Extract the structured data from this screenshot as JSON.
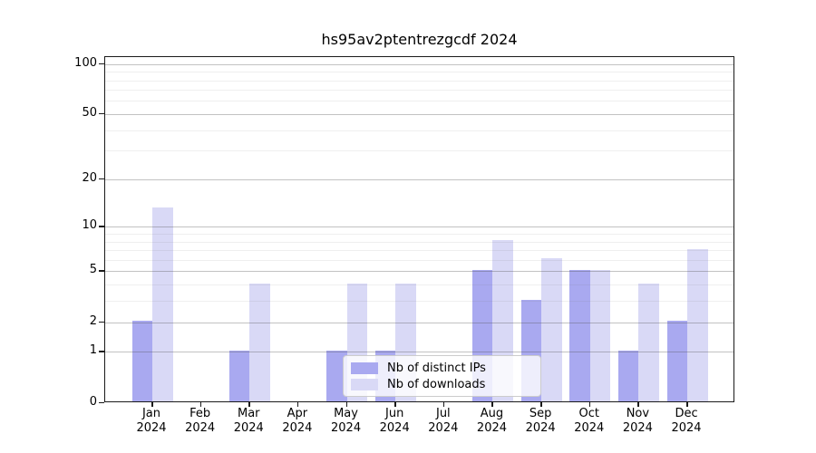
{
  "title": "hs95av2ptentrezgcdf 2024",
  "chart_data": {
    "type": "bar",
    "title": "hs95av2ptentrezgcdf 2024",
    "categories": [
      "Jan",
      "Feb",
      "Mar",
      "Apr",
      "May",
      "Jun",
      "Jul",
      "Aug",
      "Sep",
      "Oct",
      "Nov",
      "Dec"
    ],
    "category_year": "2024",
    "series": [
      {
        "name": "Nb of distinct IPs",
        "color": "#a9a9f0",
        "values": [
          2,
          0,
          1,
          0,
          1,
          1,
          0,
          5,
          3,
          5,
          1,
          2
        ]
      },
      {
        "name": "Nb of downloads",
        "color": "#d9d9f6",
        "values": [
          13,
          0,
          4,
          0,
          4,
          4,
          0,
          8,
          6,
          5,
          4,
          7
        ]
      }
    ],
    "y_scale": "log10(1+x)",
    "y_ticks": [
      0,
      1,
      2,
      5,
      10,
      20,
      50,
      100
    ],
    "y_minor_ticks": [
      3,
      4,
      6,
      7,
      8,
      9,
      30,
      40,
      60,
      70,
      80,
      90
    ],
    "ylim": [
      0,
      110
    ],
    "xlabel": "",
    "ylabel": "",
    "grid": true,
    "legend_position": "lower center",
    "legend_entries": [
      "Nb of distinct IPs",
      "Nb of downloads"
    ]
  }
}
